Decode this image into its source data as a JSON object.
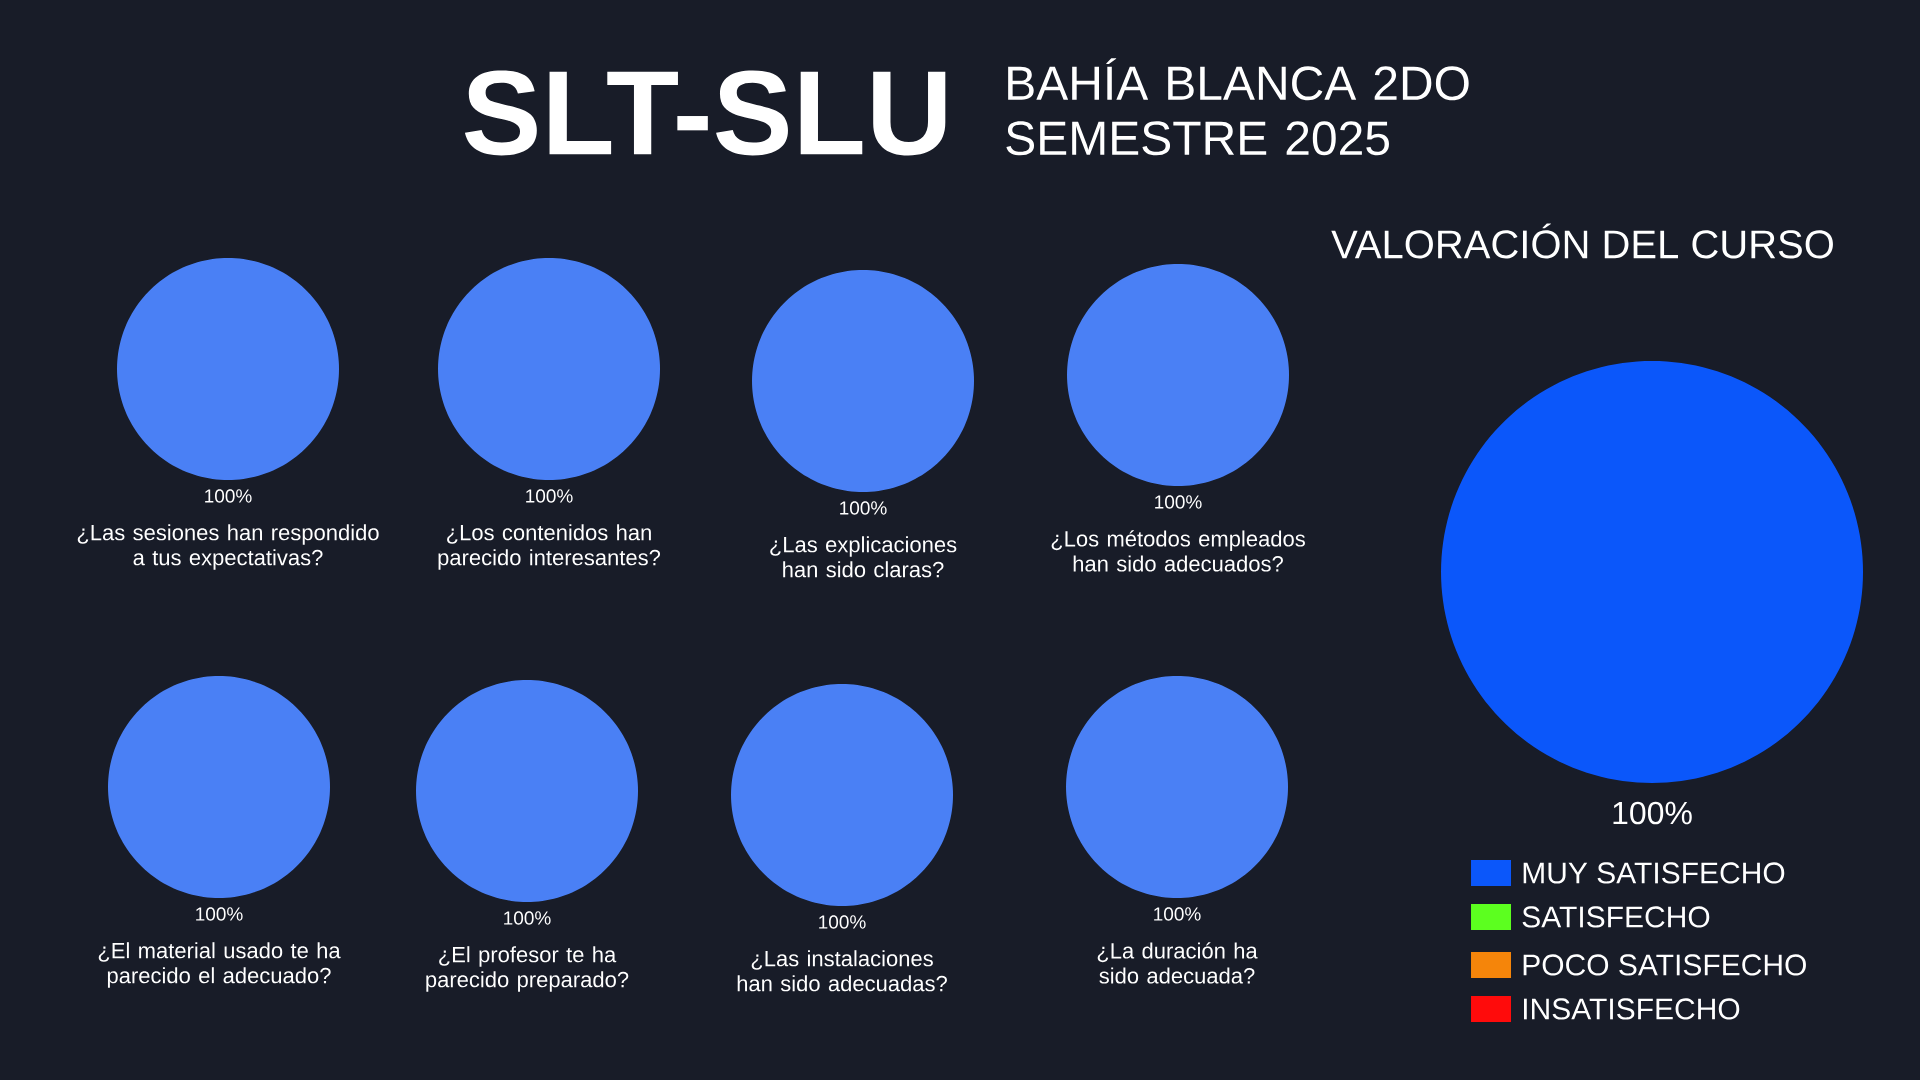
{
  "chart_data": [
    {
      "type": "other",
      "title": "SLT-SLU",
      "subtitle": "BAHÍA BLANCA  2DO SEMESTRE 2025"
    },
    {
      "type": "pie",
      "title": "¿Las sesiones han respondido a tus expectativas?",
      "categories": [
        null,
        null,
        null,
        null
      ],
      "values": [
        100,
        0,
        0,
        0
      ],
      "colors": [
        "#4a80f5",
        "#5cff1f",
        "#f5850a",
        "#ff0b0b"
      ],
      "value_labels": [
        "100%",
        null,
        null,
        null
      ]
    },
    {
      "type": "pie",
      "title": "¿Los contenidos han parecido interesantes?",
      "categories": [
        null,
        null,
        null,
        null
      ],
      "values": [
        100,
        0,
        0,
        0
      ],
      "colors": [
        "#4a80f5",
        "#5cff1f",
        "#f5850a",
        "#ff0b0b"
      ],
      "value_labels": [
        "100%",
        null,
        null,
        null
      ]
    },
    {
      "type": "pie",
      "title": "¿Las explicaciones han sido claras?",
      "categories": [
        null,
        null,
        null,
        null
      ],
      "values": [
        100,
        0,
        0,
        0
      ],
      "colors": [
        "#4a80f5",
        "#5cff1f",
        "#f5850a",
        "#ff0b0b"
      ],
      "value_labels": [
        "100%",
        null,
        null,
        null
      ]
    },
    {
      "type": "pie",
      "title": "¿Los métodos empleados han sido adecuados?",
      "categories": [
        null,
        null,
        null,
        null
      ],
      "values": [
        100,
        0,
        0,
        0
      ],
      "colors": [
        "#4a80f5",
        "#5cff1f",
        "#f5850a",
        "#ff0b0b"
      ],
      "value_labels": [
        "100%",
        null,
        null,
        null
      ]
    },
    {
      "type": "pie",
      "title": "¿El material usado te ha parecido el adecuado?",
      "categories": [
        null,
        null,
        null,
        null
      ],
      "values": [
        100,
        0,
        0,
        0
      ],
      "colors": [
        "#4a80f5",
        "#5cff1f",
        "#f5850a",
        "#ff0b0b"
      ],
      "value_labels": [
        "100%",
        null,
        null,
        null
      ]
    },
    {
      "type": "pie",
      "title": "¿El profesor te ha parecido preparado?",
      "categories": [
        null,
        null,
        null,
        null
      ],
      "values": [
        100,
        0,
        0,
        0
      ],
      "colors": [
        "#4a80f5",
        "#5cff1f",
        "#f5850a",
        "#ff0b0b"
      ],
      "value_labels": [
        "100%",
        null,
        null,
        null
      ]
    },
    {
      "type": "pie",
      "title": "¿Las instalaciones han sido adecuadas?",
      "categories": [
        null,
        null,
        null,
        null
      ],
      "values": [
        100,
        0,
        0,
        0
      ],
      "colors": [
        "#4a80f5",
        "#5cff1f",
        "#f5850a",
        "#ff0b0b"
      ],
      "value_labels": [
        "100%",
        null,
        null,
        null
      ]
    },
    {
      "type": "pie",
      "title": "¿La duración ha sido adecuada?",
      "categories": [
        null,
        null,
        null,
        null
      ],
      "values": [
        100,
        0,
        0,
        0
      ],
      "colors": [
        "#4a80f5",
        "#5cff1f",
        "#f5850a",
        "#ff0b0b"
      ],
      "value_labels": [
        "100%",
        null,
        null,
        null
      ]
    },
    {
      "type": "pie",
      "title": "VALORACIÓN DEL CURSO",
      "categories": [
        "MUY SATISFECHO",
        "SATISFECHO",
        "POCO SATISFECHO",
        "INSATISFECHO"
      ],
      "values": [
        100,
        0,
        0,
        0
      ],
      "colors": [
        "#0b57fa",
        "#5cff1f",
        "#f5850a",
        "#ff0b0b"
      ],
      "value_labels": [
        "100%",
        null,
        null,
        null
      ],
      "legend": "bottom"
    }
  ]
}
